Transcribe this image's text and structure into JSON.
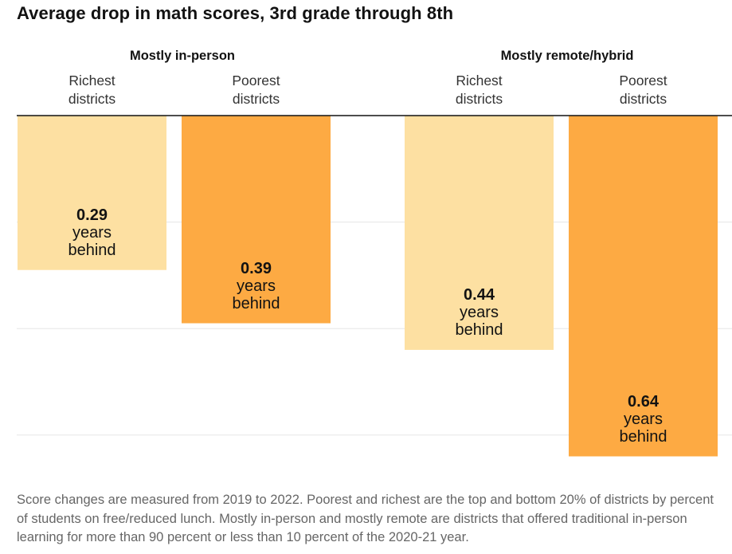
{
  "title": "Average drop in math scores, 3rd grade through 8th",
  "chart_data": {
    "type": "bar",
    "orientation": "vertical-down",
    "groups": [
      {
        "name": "Mostly in-person",
        "categories": [
          {
            "line1": "Richest",
            "line2": "districts",
            "value": 0.29,
            "value_label": "0.29",
            "unit_line1": "years",
            "unit_line2": "behind",
            "color": "#fde0a2"
          },
          {
            "line1": "Poorest",
            "line2": "districts",
            "value": 0.39,
            "value_label": "0.39",
            "unit_line1": "years",
            "unit_line2": "behind",
            "color": "#fdaa43"
          }
        ]
      },
      {
        "name": "Mostly remote/hybrid",
        "categories": [
          {
            "line1": "Richest",
            "line2": "districts",
            "value": 0.44,
            "value_label": "0.44",
            "unit_line1": "years",
            "unit_line2": "behind",
            "color": "#fde0a2"
          },
          {
            "line1": "Poorest",
            "line2": "districts",
            "value": 0.64,
            "value_label": "0.64",
            "unit_line1": "years",
            "unit_line2": "behind",
            "color": "#fdaa43"
          }
        ]
      }
    ],
    "ylim": [
      0,
      0.64
    ],
    "gridlines": [
      0.2,
      0.4,
      0.6
    ],
    "grid": true,
    "legend": "none"
  },
  "note": "Score changes are measured from 2019 to 2022. Poorest and richest are the top and bottom 20% of districts by percent of students on free/reduced lunch. Mostly in-person and mostly remote are districts that offered traditional in-person learning for more than 90 percent or less than 10 percent of the 2020-21 year."
}
